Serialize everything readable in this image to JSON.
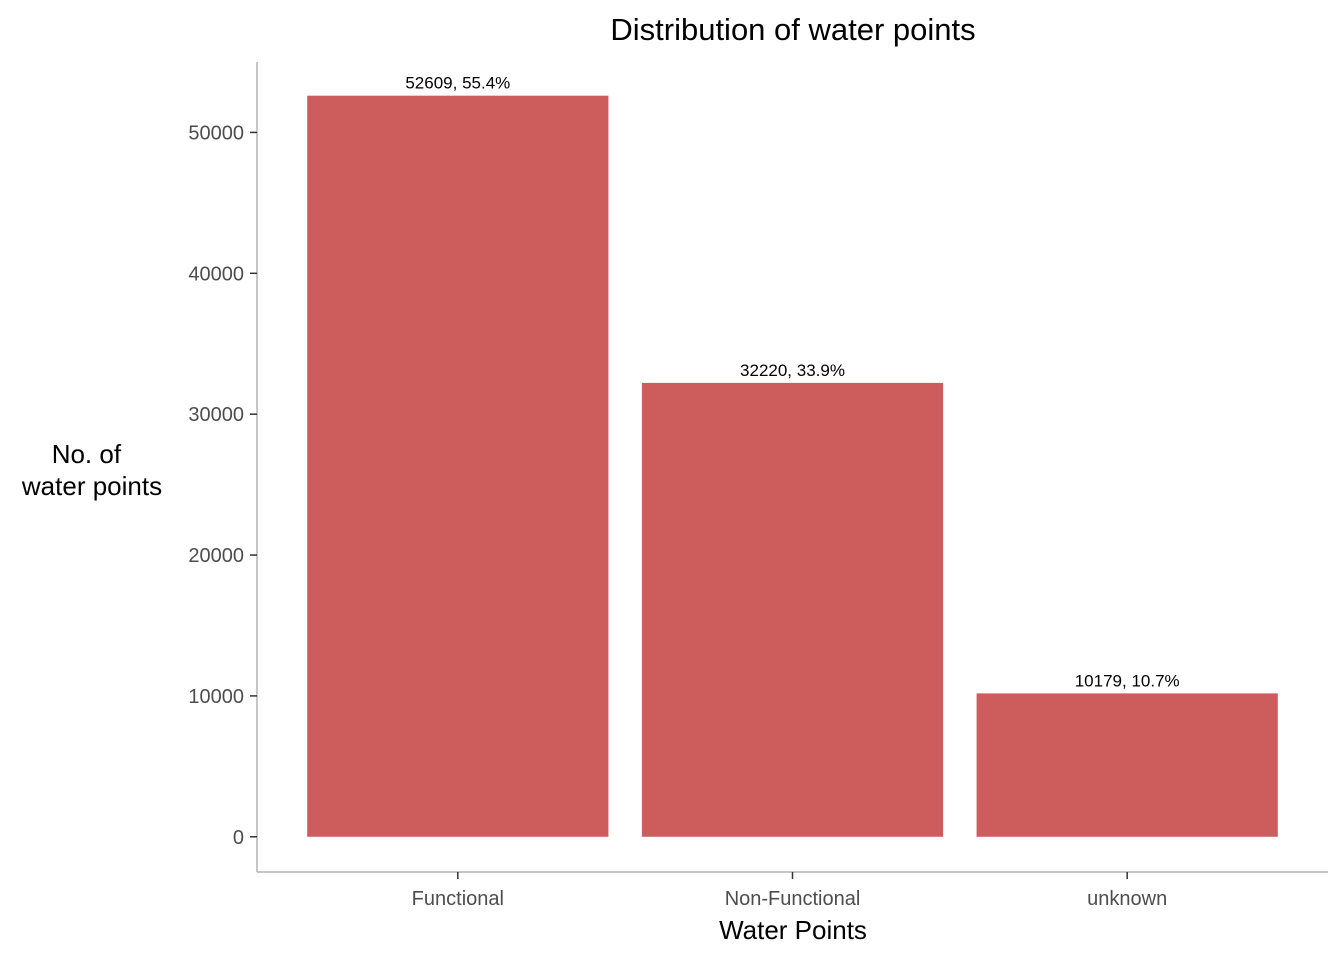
{
  "chart_data": {
    "type": "bar",
    "title": "Distribution of water points",
    "xlabel": "Water Points",
    "ylabel_lines": [
      "No. of",
      "water points"
    ],
    "categories": [
      "Functional",
      "Non-Functional",
      "unknown"
    ],
    "values": [
      52609,
      32220,
      10179
    ],
    "data_labels": [
      "52609, 55.4%",
      "32220, 33.9%",
      "10179, 10.7%"
    ],
    "yticks": [
      0,
      10000,
      20000,
      30000,
      40000,
      50000
    ],
    "ylim": [
      -2500,
      55000
    ],
    "grid": false,
    "legend": "none",
    "bar_color": "#CD5C5C"
  }
}
